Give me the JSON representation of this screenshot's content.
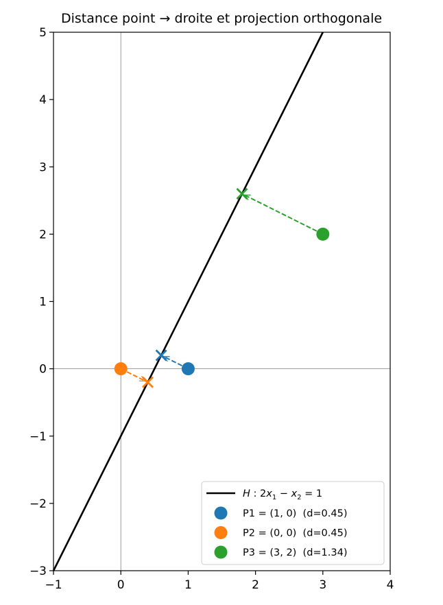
{
  "chart_data": {
    "type": "line",
    "title": "Distance point → droite et projection orthogonale",
    "xlim": [
      -1,
      4
    ],
    "ylim": [
      -3,
      5
    ],
    "xticks": [
      -1,
      0,
      1,
      2,
      3,
      4
    ],
    "yticks": [
      -3,
      -2,
      -1,
      0,
      1,
      2,
      3,
      4,
      5
    ],
    "xtick_labels": [
      "−1",
      "0",
      "1",
      "2",
      "3",
      "4"
    ],
    "ytick_labels": [
      "−3",
      "−2",
      "−1",
      "0",
      "1",
      "2",
      "3",
      "4",
      "5"
    ],
    "grid": false,
    "reference_lines": {
      "x": 0,
      "y": 0,
      "color": "#808080"
    },
    "line": {
      "name": "H : 2x₁ − x₂ = 1",
      "equation": {
        "a": 2,
        "b": -1,
        "c": 1
      },
      "color": "#000000"
    },
    "points": [
      {
        "label": "P1 = (1, 0)  (d=0.45)",
        "x": 1,
        "y": 0,
        "proj": [
          0.6,
          0.2
        ],
        "distance": 0.45,
        "color": "#1f77b4"
      },
      {
        "label": "P2 = (0, 0)  (d=0.45)",
        "x": 0,
        "y": 0,
        "proj": [
          0.4,
          -0.2
        ],
        "distance": 0.45,
        "color": "#ff7f0e"
      },
      {
        "label": "P3 = (3, 2)  (d=1.34)",
        "x": 3,
        "y": 2,
        "proj": [
          1.8,
          2.6
        ],
        "distance": 1.34,
        "color": "#2ca02c"
      }
    ],
    "legend_position": "lower-right"
  }
}
